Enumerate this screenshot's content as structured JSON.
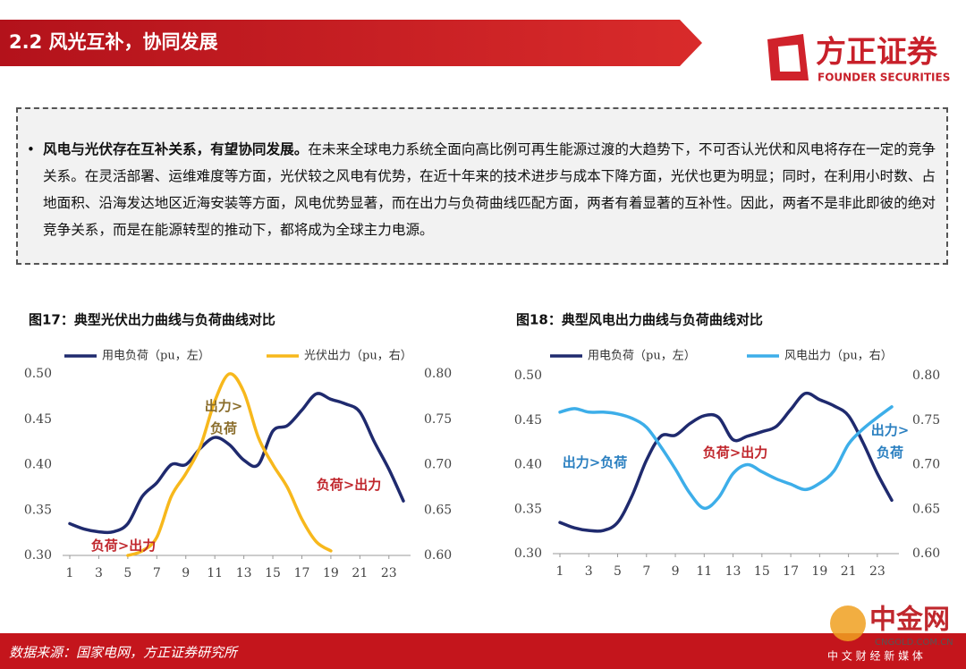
{
  "header": {
    "title": "2.2 风光互补，协同发展",
    "logo_cn": "方正证券",
    "logo_en": "FOUNDER SECURITIES"
  },
  "text": {
    "bullet": "•",
    "lead": "风电与光伏存在互补关系，有望协同发展。",
    "body": "在未来全球电力系统全面向高比例可再生能源过渡的大趋势下，不可否认光伏和风电将存在一定的竞争关系。在灵活部署、运维难度等方面，光伏较之风电有优势，在近十年来的技术进步与成本下降方面，光伏也更为明显；同时，在利用小时数、占地面积、沿海发达地区近海安装等方面，风电优势显著，而在出力与负荷曲线匹配方面，两者有着显著的互补性。因此，两者不是非此即彼的绝对竞争关系，而是在能源转型的推动下，都将成为全球主力电源。"
  },
  "chart_data": [
    {
      "type": "line",
      "title": "图17：典型光伏出力曲线与负荷曲线对比",
      "x": [
        1,
        2,
        3,
        4,
        5,
        6,
        7,
        8,
        9,
        10,
        11,
        12,
        13,
        14,
        15,
        16,
        17,
        18,
        19,
        20,
        21,
        22,
        23,
        24
      ],
      "xlim": [
        1,
        24
      ],
      "xticks": [
        1,
        3,
        5,
        7,
        9,
        11,
        13,
        15,
        17,
        19,
        21,
        23
      ],
      "ylim": [
        0.3,
        0.5
      ],
      "yticks": [
        {
          "value": 0.3,
          "label": "0.30"
        },
        {
          "value": 0.35,
          "label": "0.35"
        },
        {
          "value": 0.4,
          "label": "0.40"
        },
        {
          "value": 0.45,
          "label": "0.45"
        },
        {
          "value": 0.5,
          "label": "0.50"
        }
      ],
      "y2lim": [
        0.6,
        0.8
      ],
      "y2ticks": [
        {
          "value": 0.6,
          "label": "0.60"
        },
        {
          "value": 0.65,
          "label": "0.65"
        },
        {
          "value": 0.7,
          "label": "0.70"
        },
        {
          "value": 0.75,
          "label": "0.75"
        },
        {
          "value": 0.8,
          "label": "0.80"
        }
      ],
      "legend": "top",
      "series": [
        {
          "name": "用电负荷（pu，左）",
          "color": "#1f2a6e",
          "values": [
            0.335,
            0.329,
            0.326,
            0.326,
            0.335,
            0.365,
            0.38,
            0.4,
            0.4,
            0.418,
            0.43,
            0.422,
            0.405,
            0.4,
            0.437,
            0.443,
            0.46,
            0.478,
            0.472,
            0.467,
            0.458,
            0.425,
            0.395,
            0.36
          ]
        },
        {
          "name": "光伏出力（pu，右）",
          "color": "#f7b81c",
          "axis": "y2",
          "values": [
            null,
            null,
            null,
            null,
            0.6,
            0.605,
            0.62,
            0.665,
            0.69,
            0.72,
            0.77,
            0.8,
            0.78,
            0.73,
            0.7,
            0.675,
            0.64,
            0.615,
            0.605,
            null,
            null,
            null,
            null,
            null
          ]
        }
      ],
      "annotations": [
        {
          "lines": [
            "出力>",
            "负荷"
          ],
          "color": "#8a6d2b"
        },
        {
          "lines": [
            "负荷>出力"
          ],
          "color": "#c0272d"
        },
        {
          "lines": [
            "负荷>出力"
          ],
          "color": "#c0272d"
        }
      ]
    },
    {
      "type": "line",
      "title": "图18：典型风电出力曲线与负荷曲线对比",
      "x": [
        1,
        2,
        3,
        4,
        5,
        6,
        7,
        8,
        9,
        10,
        11,
        12,
        13,
        14,
        15,
        16,
        17,
        18,
        19,
        20,
        21,
        22,
        23,
        24
      ],
      "xlim": [
        1,
        24
      ],
      "xticks": [
        1,
        3,
        5,
        7,
        9,
        11,
        13,
        15,
        17,
        19,
        21,
        23
      ],
      "ylim": [
        0.3,
        0.5
      ],
      "yticks": [
        {
          "value": 0.3,
          "label": "0.30"
        },
        {
          "value": 0.35,
          "label": "0.35"
        },
        {
          "value": 0.4,
          "label": "0.40"
        },
        {
          "value": 0.45,
          "label": "0.45"
        },
        {
          "value": 0.5,
          "label": "0.50"
        }
      ],
      "y2lim": [
        0.6,
        0.8
      ],
      "y2ticks": [
        {
          "value": 0.6,
          "label": "0.60"
        },
        {
          "value": 0.65,
          "label": "0.65"
        },
        {
          "value": 0.7,
          "label": "0.70"
        },
        {
          "value": 0.75,
          "label": "0.75"
        },
        {
          "value": 0.8,
          "label": "0.80"
        }
      ],
      "legend": "top",
      "series": [
        {
          "name": "用电负荷（pu，左）",
          "color": "#1f2a6e",
          "values": [
            0.335,
            0.329,
            0.326,
            0.326,
            0.335,
            0.365,
            0.405,
            0.432,
            0.433,
            0.446,
            0.455,
            0.453,
            0.428,
            0.432,
            0.437,
            0.443,
            0.462,
            0.48,
            0.473,
            0.466,
            0.455,
            0.425,
            0.39,
            0.36
          ]
        },
        {
          "name": "风电出力（pu，右）",
          "color": "#3daee9",
          "axis": "y2",
          "values": [
            0.759,
            0.763,
            0.759,
            0.759,
            0.757,
            0.752,
            0.742,
            0.72,
            0.695,
            0.668,
            0.651,
            0.663,
            0.69,
            0.7,
            0.692,
            0.684,
            0.678,
            0.672,
            0.679,
            0.693,
            0.723,
            0.74,
            0.753,
            0.765
          ]
        }
      ],
      "annotations": [
        {
          "lines": [
            "出力>负荷"
          ],
          "color": "#2a7fc0"
        },
        {
          "lines": [
            "负荷>出力"
          ],
          "color": "#c0272d"
        },
        {
          "lines": [
            "出力>",
            "负荷"
          ],
          "color": "#2a7fc0"
        }
      ]
    }
  ],
  "footer": {
    "source": "数据来源：国家电网，方正证券研究所"
  },
  "watermark": {
    "name": "中金网",
    "url": "CNGOLD.COM.CN",
    "slogan": "中 文 财 经 新 媒 体"
  }
}
